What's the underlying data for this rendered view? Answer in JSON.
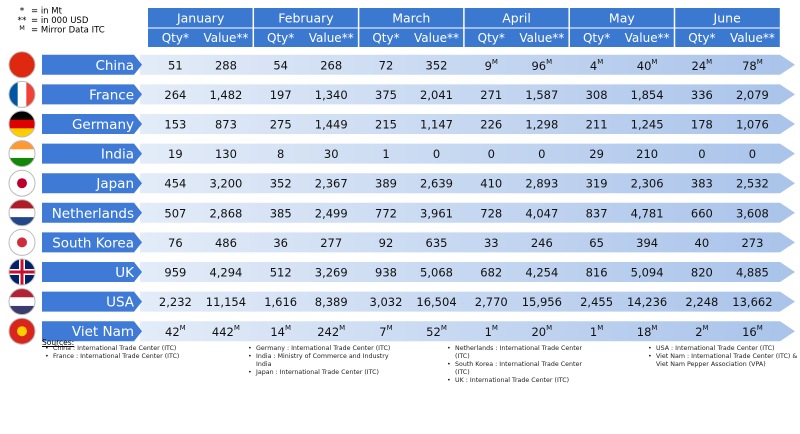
{
  "legend": [
    {
      "symbol": "*",
      "text": "= in Mt"
    },
    {
      "symbol": "**",
      "text": "= in 000 USD"
    },
    {
      "symbol": "M",
      "text": "= Mirror Data ITC"
    }
  ],
  "table": {
    "months": [
      "January",
      "February",
      "March",
      "April",
      "May",
      "June"
    ],
    "subheaders": [
      "Qty*",
      "Value**"
    ],
    "rows": [
      {
        "country": "China",
        "cells": [
          "51",
          "288",
          "54",
          "268",
          "72",
          "352",
          {
            "text": "9",
            "sup": "M"
          },
          {
            "text": "96",
            "sup": "M"
          },
          {
            "text": "4",
            "sup": "M"
          },
          {
            "text": "40",
            "sup": "M"
          },
          {
            "text": "24",
            "sup": "M"
          },
          {
            "text": "78",
            "sup": "M"
          }
        ]
      },
      {
        "country": "France",
        "cells": [
          "264",
          "1,482",
          "197",
          "1,340",
          "375",
          "2,041",
          "271",
          "1,587",
          "308",
          "1,854",
          "336",
          "2,079"
        ]
      },
      {
        "country": "Germany",
        "cells": [
          "153",
          "873",
          "275",
          "1,449",
          "215",
          "1,147",
          "226",
          "1,298",
          "211",
          "1,245",
          "178",
          "1,076"
        ]
      },
      {
        "country": "India",
        "cells": [
          "19",
          "130",
          "8",
          "30",
          "1",
          "0",
          "0",
          "0",
          "29",
          "210",
          "0",
          "0"
        ]
      },
      {
        "country": "Japan",
        "cells": [
          "454",
          "3,200",
          "352",
          "2,367",
          "389",
          "2,639",
          "410",
          "2,893",
          "319",
          "2,306",
          "383",
          "2,532"
        ]
      },
      {
        "country": "Netherlands",
        "cells": [
          "507",
          "2,868",
          "385",
          "2,499",
          "772",
          "3,961",
          "728",
          "4,047",
          "837",
          "4,781",
          "660",
          "3,608"
        ]
      },
      {
        "country": "South Korea",
        "cells": [
          "76",
          "486",
          "36",
          "277",
          "92",
          "635",
          "33",
          "246",
          "65",
          "394",
          "40",
          "273"
        ]
      },
      {
        "country": "UK",
        "cells": [
          "959",
          "4,294",
          "512",
          "3,269",
          "938",
          "5,068",
          "682",
          "4,254",
          "816",
          "5,094",
          "820",
          "4,885"
        ]
      },
      {
        "country": "USA",
        "cells": [
          "2,232",
          "11,154",
          "1,616",
          "8,389",
          "3,032",
          "16,504",
          "2,770",
          "15,956",
          "2,455",
          "14,236",
          "2,248",
          "13,662"
        ]
      },
      {
        "country": "Viet Nam",
        "cells": [
          {
            "text": "42",
            "sup": "M"
          },
          {
            "text": "442",
            "sup": "M"
          },
          {
            "text": "14",
            "sup": "M"
          },
          {
            "text": "242",
            "sup": "M"
          },
          {
            "text": "7",
            "sup": "M"
          },
          {
            "text": "52",
            "sup": "M"
          },
          {
            "text": "1",
            "sup": "M"
          },
          {
            "text": "20",
            "sup": "M"
          },
          {
            "text": "1",
            "sup": "M"
          },
          {
            "text": "18",
            "sup": "M"
          },
          {
            "text": "2",
            "sup": "M"
          },
          {
            "text": "16",
            "sup": "M"
          }
        ]
      }
    ]
  },
  "sources": {
    "title": "Sources:",
    "columns": [
      [
        "China : International Trade Center (ITC)",
        "France : International Trade Center (ITC)"
      ],
      [
        "Germany : International Trade Center (ITC)",
        "India : Ministry of Commerce and Industry India",
        "Japan : International Trade Center (ITC)"
      ],
      [
        "Netherlands : International Trade Center (ITC)",
        "South Korea : International Trade Center (ITC)",
        "UK : International Trade Center (ITC)"
      ],
      [
        "USA : International Trade Center (ITC)",
        "Viet Nam : International Trade Center (ITC) & Viet Nam Pepper Association (VPA)"
      ]
    ]
  }
}
